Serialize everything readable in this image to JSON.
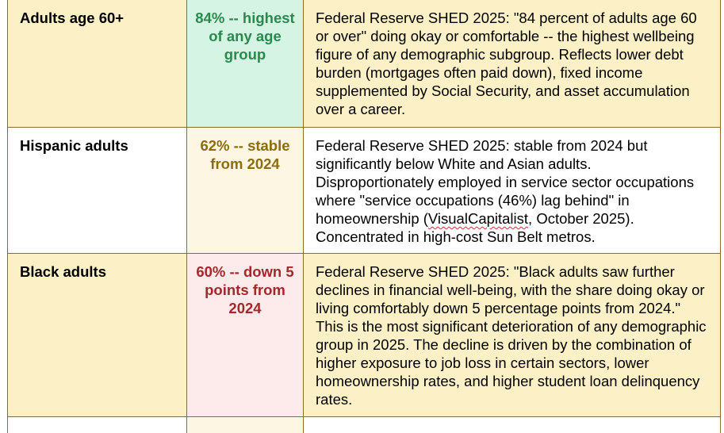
{
  "rows": [
    {
      "group": "Adults age 60+",
      "stat": "84% -- highest of any age group",
      "description": "Federal Reserve SHED 2025: \"84 percent of adults age 60 or over\" doing okay or comfortable -- the highest wellbeing figure of any demographic subgroup. Reflects lower debt burden (mortgages often paid down), fixed income supplemented by Social Security, and asset accumulation over a career."
    },
    {
      "group": "Hispanic adults",
      "stat": "62% -- stable from 2024",
      "description_before": "Federal Reserve SHED 2025: stable from 2024 but significantly below White and Asian adults. Disproportionately employed in service sector occupations where \"service occupations (46%) lag behind\" in homeownership (",
      "description_link": "VisualCapitalist",
      "description_after": ", October 2025). Concentrated in high-cost Sun Belt metros."
    },
    {
      "group": "Black adults",
      "stat": "60% -- down 5 points from 2024",
      "description": "Federal Reserve SHED 2025: \"Black adults saw further declines in financial well-being, with the share doing okay or living comfortably down 5 percentage points from 2024.\" This is the most significant deterioration of any demographic group in 2025. The decline is driven by the combination of higher exposure to job loss in certain sectors, lower homeownership rates, and higher student loan delinquency rates."
    }
  ],
  "colors": {
    "group_bg": "#fcf0c7",
    "stat_green": "#2a8a4e",
    "stat_olive": "#8c6d0a",
    "stat_red": "#a4282a",
    "border": "#8a6d2a"
  }
}
